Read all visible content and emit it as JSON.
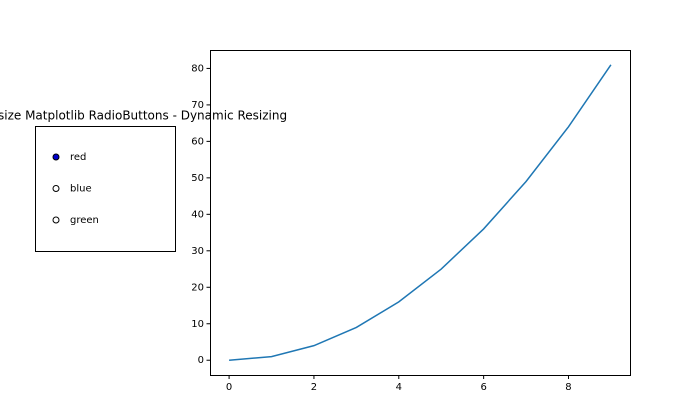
{
  "chart_data": {
    "type": "line",
    "title": "size Matplotlib RadioButtons - Dynamic Resizing",
    "x": [
      0,
      1,
      2,
      3,
      4,
      5,
      6,
      7,
      8,
      9
    ],
    "series": [
      {
        "color": "#1f77b4",
        "values": [
          0,
          1,
          4,
          9,
          16,
          25,
          36,
          49,
          64,
          81
        ]
      }
    ],
    "xlim": [
      -0.45,
      9.45
    ],
    "ylim": [
      -4.05,
      85.05
    ],
    "xticks": [
      0,
      2,
      4,
      6,
      8
    ],
    "yticks": [
      0,
      10,
      20,
      30,
      40,
      50,
      60,
      70,
      80
    ]
  },
  "radio": {
    "labels": [
      "red",
      "blue",
      "green"
    ],
    "active": 0,
    "active_color": "#0000cd"
  }
}
